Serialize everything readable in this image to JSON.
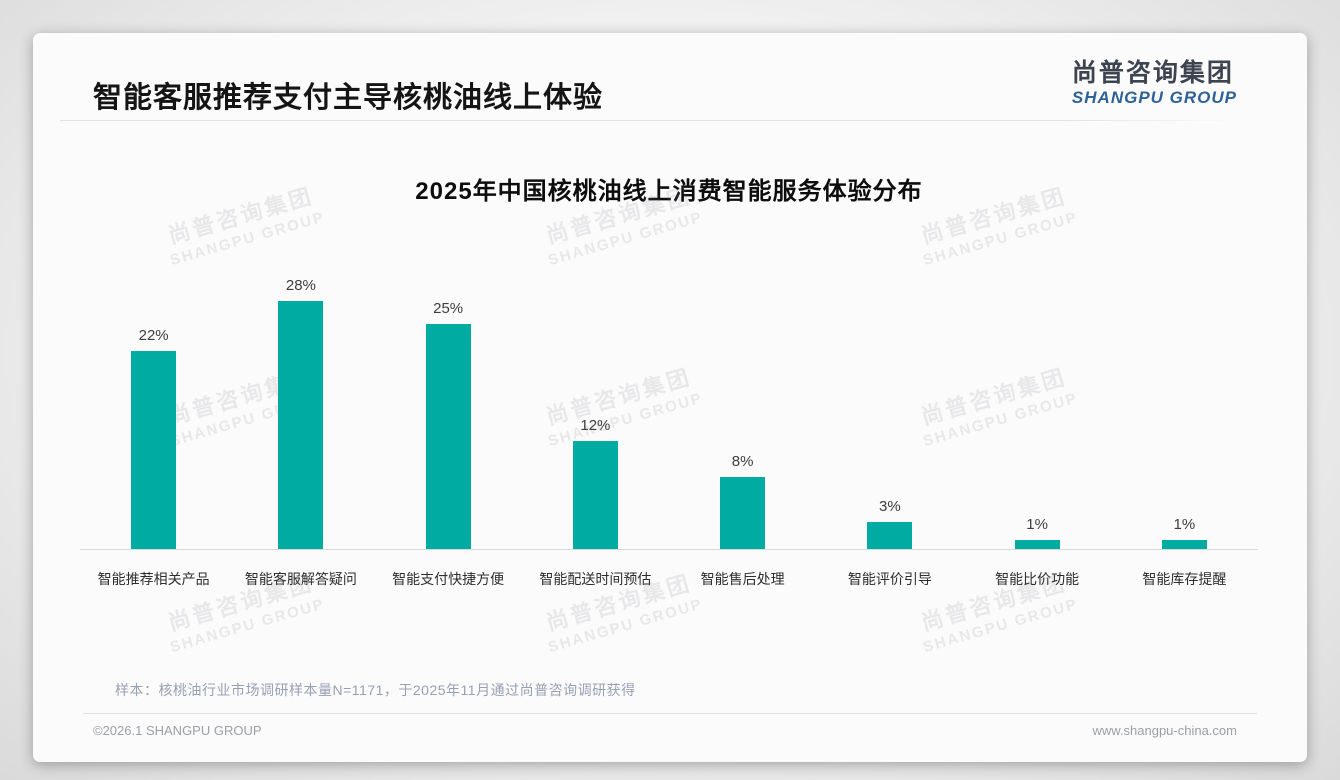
{
  "page": {
    "title": "智能客服推荐支付主导核桃油线上体验",
    "logo": {
      "cn": "尚普咨询集团",
      "en": "SHANGPU GROUP"
    },
    "watermark": {
      "cn": "尚普咨询集团",
      "en": "SHANGPU GROUP"
    },
    "note": "样本：核桃油行业市场调研样本量N=1171，于2025年11月通过尚普咨询调研获得",
    "footer": {
      "left": "©2026.1 SHANGPU GROUP",
      "right": "www.shangpu-china.com"
    }
  },
  "colors": {
    "bar": "#00aca2",
    "logo_blue": "#2d6198",
    "title_text": "#151515",
    "note_text": "#97a1b4",
    "axis_line": "#d9d9d9"
  },
  "chart_data": {
    "type": "bar",
    "title": "2025年中国核桃油线上消费智能服务体验分布",
    "categories": [
      "智能推荐相关产品",
      "智能客服解答疑问",
      "智能支付快捷方便",
      "智能配送时间预估",
      "智能售后处理",
      "智能评价引导",
      "智能比价功能",
      "智能库存提醒"
    ],
    "values": [
      22,
      28,
      25,
      12,
      8,
      3,
      1,
      1
    ],
    "value_labels": [
      "22%",
      "28%",
      "25%",
      "12%",
      "8%",
      "3%",
      "1%",
      "1%"
    ],
    "unit": "%",
    "ylim": [
      0,
      30
    ],
    "grid": false,
    "legend": false,
    "bar_color": "#00aca2"
  }
}
